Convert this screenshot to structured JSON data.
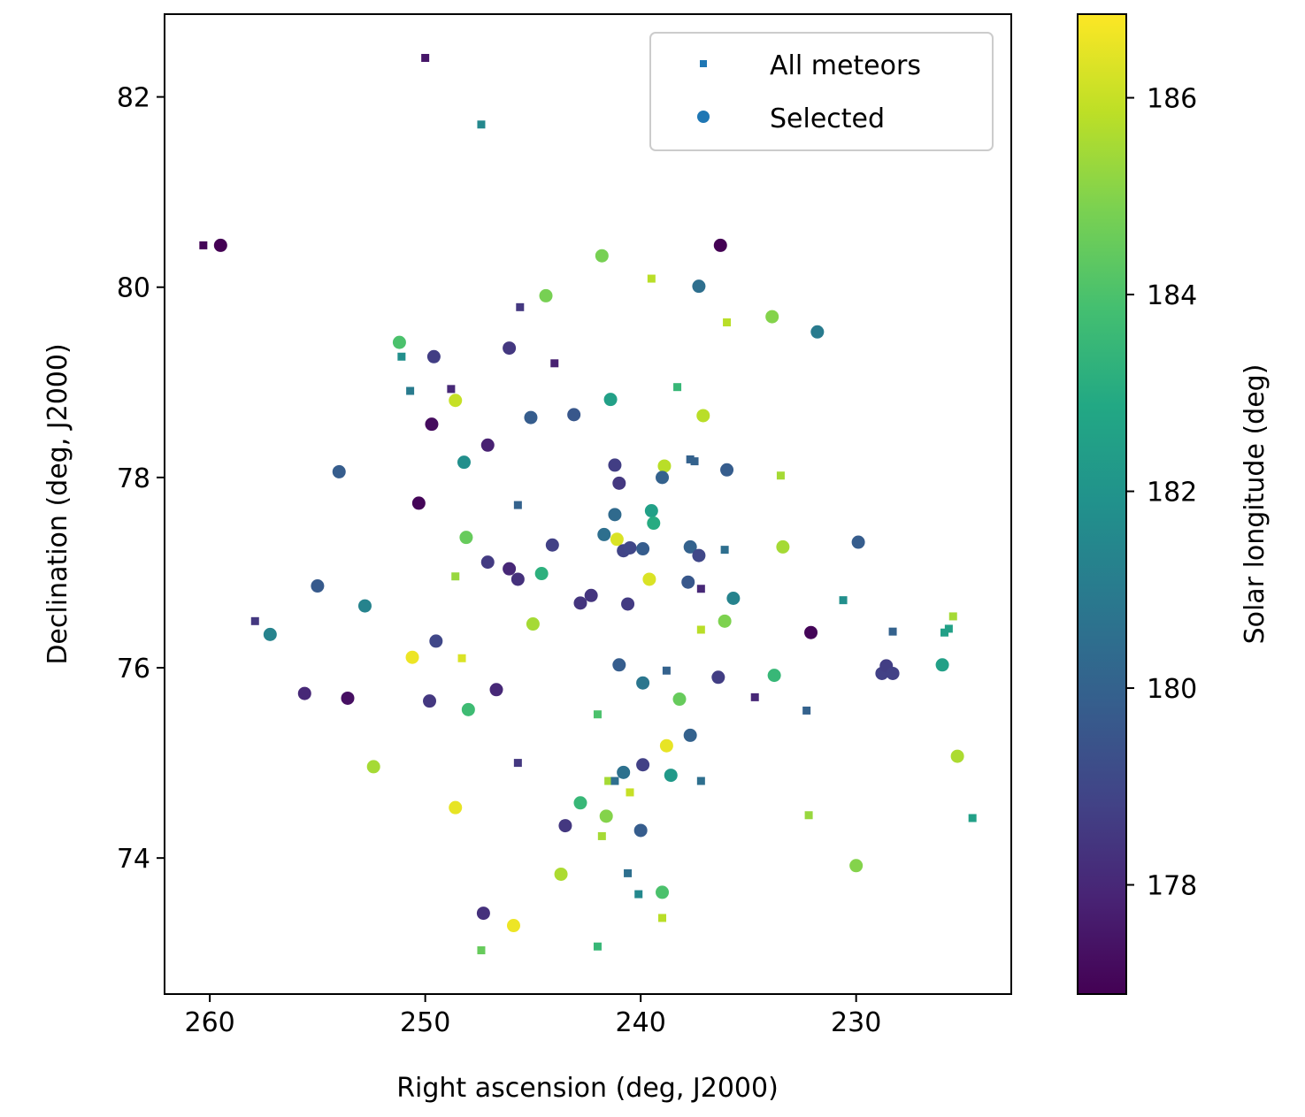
{
  "chart_data": {
    "type": "scatter",
    "xlabel": "Right ascension (deg, J2000)",
    "ylabel": "Declination (deg, J2000)",
    "colorbar_label": "Solar longitude (deg)",
    "xlim": [
      262.1,
      222.8
    ],
    "ylim": [
      72.57,
      82.87
    ],
    "clim": [
      176.89,
      186.85
    ],
    "x_ticks": [
      260,
      250,
      240,
      230
    ],
    "x_tick_labels": [
      "260",
      "250",
      "240",
      "230"
    ],
    "y_ticks": [
      74,
      76,
      78,
      80,
      82
    ],
    "y_tick_labels": [
      "74",
      "76",
      "78",
      "80",
      "82"
    ],
    "c_ticks": [
      178,
      180,
      182,
      184,
      186
    ],
    "c_tick_labels": [
      "178",
      "180",
      "182",
      "184",
      "186"
    ],
    "colormap": "viridis",
    "legend": {
      "placement": "top-right",
      "entries": [
        "All meteors",
        "Selected"
      ],
      "color": "#1f77b4"
    },
    "grid": false,
    "series": [
      {
        "name": "All meteors",
        "marker": "square",
        "columns": [
          "ra",
          "dec",
          "solar_longitude"
        ],
        "points": [
          [
            250.0,
            82.41,
            177.5
          ],
          [
            247.4,
            81.71,
            181.5
          ],
          [
            260.3,
            80.44,
            177.0
          ],
          [
            239.5,
            80.09,
            185.8
          ],
          [
            245.6,
            79.79,
            178.5
          ],
          [
            236.0,
            79.63,
            185.8
          ],
          [
            251.1,
            79.27,
            181.8
          ],
          [
            244.0,
            79.2,
            177.8
          ],
          [
            250.7,
            78.91,
            181.0
          ],
          [
            248.8,
            78.93,
            178.0
          ],
          [
            238.3,
            78.95,
            183.5
          ],
          [
            237.7,
            78.19,
            180.0
          ],
          [
            237.5,
            78.17,
            180.0
          ],
          [
            233.5,
            78.02,
            185.5
          ],
          [
            245.7,
            77.71,
            180.0
          ],
          [
            236.1,
            77.24,
            180.5
          ],
          [
            248.6,
            76.96,
            185.3
          ],
          [
            237.2,
            76.83,
            178.0
          ],
          [
            230.6,
            76.71,
            181.8
          ],
          [
            257.9,
            76.49,
            178.5
          ],
          [
            237.2,
            76.4,
            185.8
          ],
          [
            228.3,
            76.38,
            180.0
          ],
          [
            225.5,
            76.54,
            185.5
          ],
          [
            225.7,
            76.41,
            182.5
          ],
          [
            225.9,
            76.37,
            182.5
          ],
          [
            248.3,
            76.1,
            186.3
          ],
          [
            238.8,
            75.97,
            180.0
          ],
          [
            234.7,
            75.69,
            178.0
          ],
          [
            232.3,
            75.55,
            180.0
          ],
          [
            242.0,
            75.51,
            184.0
          ],
          [
            245.7,
            75.0,
            178.5
          ],
          [
            241.5,
            74.81,
            185.5
          ],
          [
            241.2,
            74.81,
            180.5
          ],
          [
            240.5,
            74.69,
            186.0
          ],
          [
            237.2,
            74.81,
            180.5
          ],
          [
            232.2,
            74.45,
            185.3
          ],
          [
            224.6,
            74.42,
            182.5
          ],
          [
            241.8,
            74.23,
            185.5
          ],
          [
            240.6,
            73.84,
            180.5
          ],
          [
            240.1,
            73.62,
            181.5
          ],
          [
            239.0,
            73.37,
            185.8
          ],
          [
            247.4,
            73.03,
            184.5
          ],
          [
            242.0,
            73.07,
            183.5
          ]
        ]
      },
      {
        "name": "Selected",
        "marker": "circle",
        "columns": [
          "ra",
          "dec",
          "solar_longitude"
        ],
        "points": [
          [
            259.5,
            80.44,
            176.9
          ],
          [
            236.3,
            80.44,
            176.9
          ],
          [
            241.8,
            80.33,
            184.8
          ],
          [
            244.4,
            79.91,
            184.8
          ],
          [
            237.3,
            80.01,
            180.5
          ],
          [
            233.9,
            79.69,
            185.0
          ],
          [
            231.8,
            79.53,
            181.0
          ],
          [
            251.2,
            79.42,
            184.0
          ],
          [
            246.1,
            79.36,
            178.5
          ],
          [
            249.6,
            79.27,
            178.7
          ],
          [
            248.6,
            78.81,
            186.0
          ],
          [
            241.4,
            78.82,
            182.5
          ],
          [
            237.1,
            78.65,
            185.8
          ],
          [
            245.1,
            78.63,
            179.8
          ],
          [
            243.1,
            78.66,
            179.6
          ],
          [
            249.7,
            78.56,
            177.2
          ],
          [
            247.1,
            78.34,
            177.8
          ],
          [
            254.0,
            78.06,
            179.8
          ],
          [
            248.2,
            78.16,
            181.8
          ],
          [
            241.2,
            78.13,
            178.7
          ],
          [
            238.9,
            78.12,
            185.8
          ],
          [
            236.0,
            78.08,
            179.8
          ],
          [
            241.0,
            77.94,
            178.5
          ],
          [
            239.0,
            78.0,
            180.0
          ],
          [
            250.3,
            77.73,
            177.0
          ],
          [
            241.2,
            77.61,
            180.3
          ],
          [
            239.5,
            77.65,
            182.5
          ],
          [
            239.4,
            77.52,
            183.0
          ],
          [
            248.1,
            77.37,
            184.5
          ],
          [
            241.7,
            77.4,
            180.5
          ],
          [
            241.1,
            77.35,
            186.3
          ],
          [
            244.1,
            77.29,
            178.8
          ],
          [
            240.8,
            77.23,
            178.9
          ],
          [
            240.5,
            77.26,
            179.0
          ],
          [
            239.9,
            77.25,
            179.8
          ],
          [
            237.7,
            77.27,
            180.0
          ],
          [
            237.3,
            77.18,
            179.0
          ],
          [
            233.4,
            77.27,
            185.5
          ],
          [
            229.9,
            77.32,
            179.8
          ],
          [
            247.1,
            77.11,
            178.6
          ],
          [
            246.1,
            77.04,
            178.0
          ],
          [
            245.7,
            76.93,
            178.3
          ],
          [
            244.6,
            76.99,
            183.2
          ],
          [
            242.3,
            76.76,
            178.4
          ],
          [
            242.8,
            76.68,
            178.4
          ],
          [
            239.6,
            76.93,
            186.3
          ],
          [
            237.8,
            76.9,
            179.6
          ],
          [
            235.7,
            76.73,
            181.3
          ],
          [
            240.6,
            76.67,
            178.6
          ],
          [
            255.0,
            76.86,
            179.7
          ],
          [
            252.8,
            76.65,
            181.3
          ],
          [
            257.2,
            76.35,
            181.3
          ],
          [
            245.0,
            76.46,
            185.5
          ],
          [
            236.1,
            76.49,
            184.9
          ],
          [
            232.1,
            76.37,
            177.0
          ],
          [
            249.5,
            76.28,
            179.0
          ],
          [
            250.6,
            76.11,
            186.6
          ],
          [
            241.0,
            76.03,
            179.8
          ],
          [
            226.0,
            76.03,
            182.5
          ],
          [
            228.8,
            75.94,
            178.8
          ],
          [
            228.6,
            76.02,
            178.7
          ],
          [
            228.3,
            75.94,
            178.8
          ],
          [
            233.8,
            75.92,
            183.5
          ],
          [
            239.9,
            75.84,
            180.8
          ],
          [
            236.4,
            75.9,
            178.7
          ],
          [
            255.6,
            75.73,
            178.0
          ],
          [
            253.6,
            75.68,
            177.3
          ],
          [
            246.7,
            75.77,
            178.0
          ],
          [
            249.8,
            75.65,
            178.5
          ],
          [
            248.0,
            75.56,
            183.7
          ],
          [
            238.2,
            75.67,
            184.5
          ],
          [
            237.7,
            75.29,
            180.0
          ],
          [
            238.8,
            75.18,
            186.5
          ],
          [
            252.4,
            74.96,
            185.5
          ],
          [
            239.9,
            74.98,
            178.8
          ],
          [
            240.8,
            74.9,
            180.6
          ],
          [
            238.6,
            74.87,
            182.2
          ],
          [
            225.3,
            75.07,
            185.6
          ],
          [
            248.6,
            74.53,
            186.5
          ],
          [
            242.8,
            74.58,
            183.5
          ],
          [
            241.6,
            74.44,
            185.0
          ],
          [
            243.5,
            74.34,
            178.5
          ],
          [
            240.0,
            74.29,
            179.8
          ],
          [
            243.7,
            73.83,
            185.6
          ],
          [
            230.0,
            73.92,
            185.0
          ],
          [
            239.0,
            73.64,
            184.0
          ],
          [
            247.3,
            73.42,
            178.3
          ],
          [
            245.9,
            73.29,
            186.6
          ]
        ]
      }
    ]
  }
}
